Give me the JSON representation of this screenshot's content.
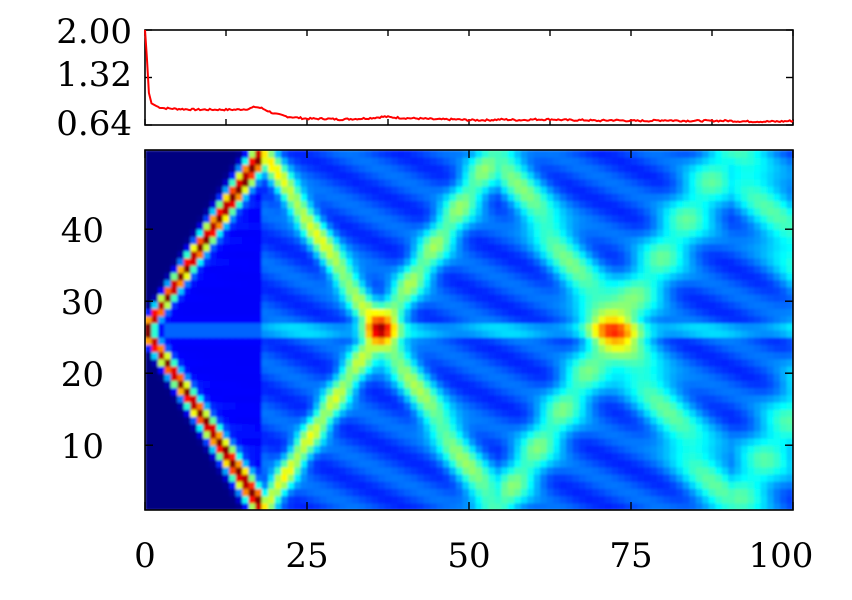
{
  "chart_data": [
    {
      "type": "line",
      "title": "",
      "xlabel": "",
      "ylabel": "",
      "xlim": [
        0,
        100
      ],
      "ylim": [
        0.64,
        2.0
      ],
      "y_tick_labels": [
        "2.00",
        "1.32",
        "0.64"
      ],
      "y_ticks": [
        2.0,
        1.32,
        0.64
      ],
      "x_tick_labels_shown": false,
      "grid": false,
      "series": [
        {
          "color": "#ff0000",
          "x": [
            0,
            0.3,
            0.6,
            1,
            2,
            3,
            5,
            8,
            10,
            12,
            14,
            16,
            17,
            18,
            19,
            20,
            22,
            24,
            25,
            28,
            30,
            33,
            35,
            37,
            38,
            40,
            43,
            45,
            48,
            50,
            53,
            55,
            58,
            60,
            63,
            65,
            68,
            70,
            72,
            75,
            78,
            80,
            83,
            85,
            88,
            90,
            93,
            95,
            98,
            100
          ],
          "values": [
            2.0,
            1.6,
            1.1,
            0.95,
            0.9,
            0.88,
            0.87,
            0.86,
            0.86,
            0.86,
            0.86,
            0.87,
            0.9,
            0.88,
            0.84,
            0.8,
            0.76,
            0.74,
            0.73,
            0.73,
            0.72,
            0.73,
            0.74,
            0.76,
            0.75,
            0.74,
            0.73,
            0.72,
            0.72,
            0.71,
            0.71,
            0.72,
            0.71,
            0.72,
            0.72,
            0.71,
            0.71,
            0.7,
            0.71,
            0.7,
            0.7,
            0.71,
            0.7,
            0.7,
            0.7,
            0.7,
            0.69,
            0.69,
            0.69,
            0.7
          ]
        }
      ]
    },
    {
      "type": "heatmap",
      "title": "",
      "xlabel": "",
      "ylabel": "",
      "xlim": [
        0,
        100
      ],
      "ylim": [
        1,
        51
      ],
      "x_ticks": [
        0,
        25,
        50,
        75,
        100
      ],
      "x_tick_labels": [
        "0",
        "25",
        "50",
        "75",
        "100"
      ],
      "y_ticks": [
        10,
        20,
        30,
        40
      ],
      "y_tick_labels": [
        "10",
        "20",
        "30",
        "40"
      ],
      "colormap": "jet",
      "grid": false,
      "source_site": 26,
      "front_speed_sites_per_x": 1.38,
      "colors": {
        "low": "#00008f",
        "mid": "#00a0ff",
        "high": "#ffff00",
        "peak": "#ff5000"
      }
    }
  ]
}
